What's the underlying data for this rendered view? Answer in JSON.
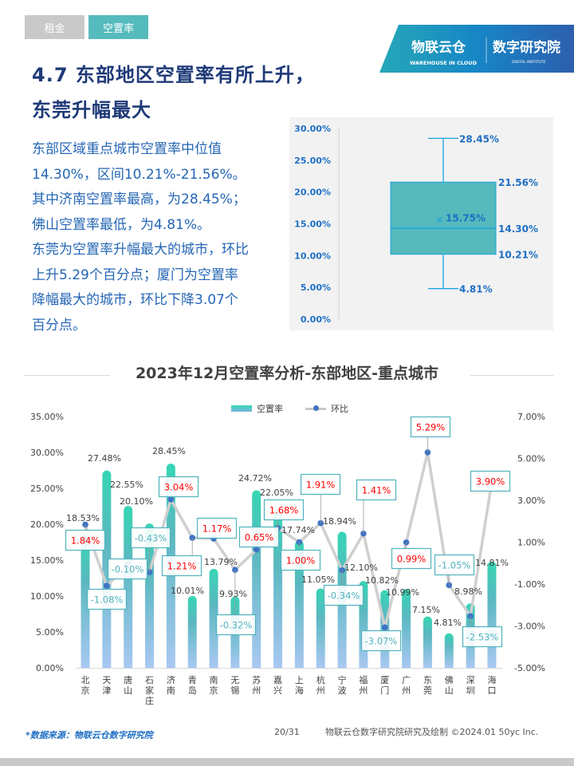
{
  "tabs": [
    {
      "label": "租金",
      "active": false
    },
    {
      "label": "空置率",
      "active": true
    }
  ],
  "logo": {
    "brand": "物联云仓",
    "brand_en": "WAREHOUSE IN CLOUD",
    "institute": "数字研究院",
    "institute_en": "DIGITAL INSTITUTE"
  },
  "title": {
    "line1": "4.7 东部地区空置率有所上升，",
    "line2": "东莞升幅最大"
  },
  "body": [
    "东部区域重点城市空置率中位值",
    "14.30%，区间10.21%-21.56%。",
    "其中济南空置率最高，为28.45%；",
    "佛山空置率最低，为4.81%。",
    "东莞为空置率升幅最大的城市，环比",
    "上升5.29个百分点；厦门为空置率",
    "降幅最大的城市，环比下降3.07个",
    "百分点。"
  ],
  "chart_data": [
    {
      "type": "box",
      "y_ticks": [
        "0.00%",
        "5.00%",
        "10.00%",
        "15.00%",
        "20.00%",
        "25.00%",
        "30.00%"
      ],
      "ylim": [
        0,
        30
      ],
      "min": 4.81,
      "q1": 10.21,
      "median": 14.3,
      "mean": 15.75,
      "q3": 21.56,
      "max": 28.45,
      "labels": {
        "min": "4.81%",
        "q1": "10.21%",
        "median": "14.30%",
        "mean": "15.75%",
        "q3": "21.56%",
        "max": "28.45%"
      },
      "colors": {
        "box": "#56babd",
        "whisker": "#1aa3e0",
        "label": "#1f6fc4",
        "background": "#f2f2f2"
      }
    },
    {
      "type": "bar+line",
      "title": "2023年12月空置率分析-东部地区-重点城市",
      "legend": [
        "空置率",
        "环比"
      ],
      "legend_position": "top",
      "categories": [
        "北京",
        "天津",
        "唐山",
        "石家庄",
        "济南",
        "青岛",
        "南京",
        "无锡",
        "苏州",
        "嘉兴",
        "上海",
        "杭州",
        "宁波",
        "福州",
        "厦门",
        "广州",
        "东莞",
        "佛山",
        "深圳",
        "海口"
      ],
      "series": [
        {
          "name": "空置率",
          "type": "bar",
          "axis": "left",
          "values": [
            18.53,
            27.48,
            22.55,
            20.1,
            28.45,
            10.01,
            13.79,
            9.93,
            24.72,
            22.05,
            17.74,
            11.05,
            18.94,
            12.1,
            10.82,
            10.99,
            7.15,
            4.81,
            8.98,
            14.81
          ]
        },
        {
          "name": "环比",
          "type": "line",
          "axis": "right",
          "values": [
            1.84,
            -1.08,
            -0.1,
            -0.43,
            3.04,
            1.21,
            1.17,
            -0.32,
            0.65,
            1.68,
            1.0,
            1.91,
            -0.34,
            1.41,
            -3.07,
            0.99,
            5.29,
            -1.05,
            -2.53,
            3.9
          ]
        }
      ],
      "left_axis": {
        "ylim": [
          0,
          35
        ],
        "ticks": [
          "0.00%",
          "5.00%",
          "10.00%",
          "15.00%",
          "20.00%",
          "25.00%",
          "30.00%",
          "35.00%"
        ]
      },
      "right_axis": {
        "ylim": [
          -5,
          7
        ],
        "ticks": [
          "-5.00%",
          "-3.00%",
          "-1.00%",
          "1.00%",
          "3.00%",
          "5.00%",
          "7.00%"
        ]
      },
      "colors": {
        "bar_top": "#36d6b4",
        "bar_bottom": "#a9c8f2",
        "line": "#cfcfcf",
        "dot": "#3f73c4",
        "positive": "#ff0000",
        "negative": "#4fb3be",
        "label_border": "#4fb3be"
      }
    }
  ],
  "footer": {
    "source": "*数据来源：物联云仓数字研究院",
    "page": "20/31",
    "credit": "物联云仓数字研究院研究及绘制   ©2024.01 50yc Inc."
  }
}
